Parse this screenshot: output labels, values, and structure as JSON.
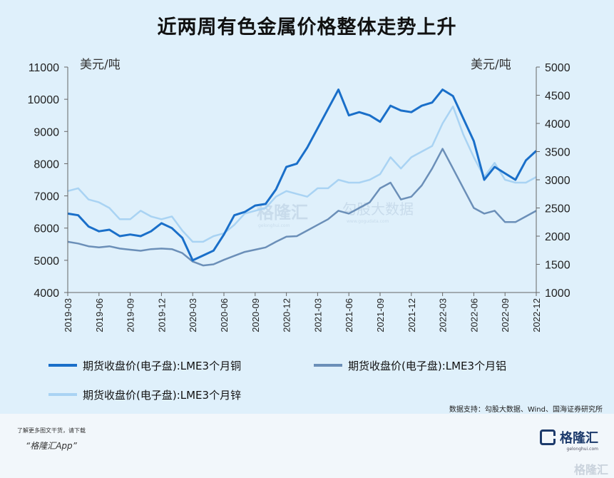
{
  "title": "近两周有色金属价格整体走势上升",
  "source": "数据支持：勾股大数据、Wind、国海证券研究所",
  "footer": {
    "note": "了解更多图文干货，请下载",
    "app": "“格隆汇App”",
    "brand": "格隆汇",
    "brand_sub": "gelonghui.com",
    "bottom_watermark": "格隆汇"
  },
  "watermark": {
    "left": "格隆汇",
    "left_sub": "gelonghui.com",
    "right": "勾股大数据",
    "right_sub": "www.gogudata.com"
  },
  "colors": {
    "copper": "#1a6fc9",
    "aluminum": "#6b8fb8",
    "zinc": "#a9d3f3"
  },
  "chart_data": {
    "type": "line",
    "title": "近两周有色金属价格整体走势上升",
    "left_axis": {
      "unit": "美元/吨",
      "ylim": [
        4000,
        11000
      ],
      "ticks": [
        4000,
        5000,
        6000,
        7000,
        8000,
        9000,
        10000,
        11000
      ]
    },
    "right_axis": {
      "unit": "美元/吨",
      "ylim": [
        1000,
        5000
      ],
      "ticks": [
        1000,
        1500,
        2000,
        2500,
        3000,
        3500,
        4000,
        4500,
        5000
      ]
    },
    "x_ticks": [
      "2019-03",
      "2019-06",
      "2019-09",
      "2019-12",
      "2020-03",
      "2020-06",
      "2020-09",
      "2020-12",
      "2021-03",
      "2021-06",
      "2021-09",
      "2021-12",
      "2022-03",
      "2022-06",
      "2022-09",
      "2022-12"
    ],
    "x_range": [
      "2019-03",
      "2022-12"
    ],
    "legend": [
      {
        "name": "期货收盘价(电子盘):LME3个月铜",
        "color": "#1a6fc9"
      },
      {
        "name": "期货收盘价(电子盘):LME3个月铝",
        "color": "#6b8fb8"
      },
      {
        "name": "期货收盘价(电子盘):LME3个月锌",
        "color": "#a9d3f3"
      }
    ],
    "series": [
      {
        "name": "期货收盘价(电子盘):LME3个月铜",
        "axis": "left",
        "x": [
          "2019-03",
          "2019-04",
          "2019-05",
          "2019-06",
          "2019-07",
          "2019-08",
          "2019-09",
          "2019-10",
          "2019-11",
          "2019-12",
          "2020-01",
          "2020-02",
          "2020-03",
          "2020-04",
          "2020-05",
          "2020-06",
          "2020-07",
          "2020-08",
          "2020-09",
          "2020-10",
          "2020-11",
          "2020-12",
          "2021-01",
          "2021-02",
          "2021-03",
          "2021-04",
          "2021-05",
          "2021-06",
          "2021-07",
          "2021-08",
          "2021-09",
          "2021-10",
          "2021-11",
          "2021-12",
          "2022-01",
          "2022-02",
          "2022-03",
          "2022-04",
          "2022-05",
          "2022-06",
          "2022-07",
          "2022-08",
          "2022-09",
          "2022-10",
          "2022-11",
          "2022-12"
        ],
        "values": [
          6450,
          6400,
          6050,
          5900,
          5950,
          5750,
          5800,
          5750,
          5900,
          6150,
          6000,
          5700,
          5000,
          5150,
          5300,
          5800,
          6400,
          6500,
          6700,
          6750,
          7200,
          7900,
          8000,
          8500,
          9100,
          9700,
          10300,
          9500,
          9600,
          9500,
          9300,
          9800,
          9650,
          9600,
          9800,
          9900,
          10300,
          10100,
          9400,
          8700,
          7500,
          7900,
          7700,
          7500,
          8100,
          8400
        ]
      },
      {
        "name": "期货收盘价(电子盘):LME3个月铝",
        "axis": "right",
        "x": [
          "2019-03",
          "2019-04",
          "2019-05",
          "2019-06",
          "2019-07",
          "2019-08",
          "2019-09",
          "2019-10",
          "2019-11",
          "2019-12",
          "2020-01",
          "2020-02",
          "2020-03",
          "2020-04",
          "2020-05",
          "2020-06",
          "2020-07",
          "2020-08",
          "2020-09",
          "2020-10",
          "2020-11",
          "2020-12",
          "2021-01",
          "2021-02",
          "2021-03",
          "2021-04",
          "2021-05",
          "2021-06",
          "2021-07",
          "2021-08",
          "2021-09",
          "2021-10",
          "2021-11",
          "2021-12",
          "2022-01",
          "2022-02",
          "2022-03",
          "2022-04",
          "2022-05",
          "2022-06",
          "2022-07",
          "2022-08",
          "2022-09",
          "2022-10",
          "2022-11",
          "2022-12"
        ],
        "values": [
          1900,
          1870,
          1820,
          1800,
          1820,
          1780,
          1760,
          1740,
          1770,
          1780,
          1770,
          1700,
          1550,
          1480,
          1500,
          1580,
          1650,
          1720,
          1760,
          1800,
          1900,
          1990,
          2000,
          2100,
          2200,
          2300,
          2450,
          2400,
          2500,
          2600,
          2850,
          2950,
          2650,
          2700,
          2900,
          3200,
          3550,
          3200,
          2850,
          2500,
          2400,
          2450,
          2250,
          2250,
          2350,
          2450
        ]
      },
      {
        "name": "期货收盘价(电子盘):LME3个月锌",
        "axis": "right",
        "x": [
          "2019-03",
          "2019-04",
          "2019-05",
          "2019-06",
          "2019-07",
          "2019-08",
          "2019-09",
          "2019-10",
          "2019-11",
          "2019-12",
          "2020-01",
          "2020-02",
          "2020-03",
          "2020-04",
          "2020-05",
          "2020-06",
          "2020-07",
          "2020-08",
          "2020-09",
          "2020-10",
          "2020-11",
          "2020-12",
          "2021-01",
          "2021-02",
          "2021-03",
          "2021-04",
          "2021-05",
          "2021-06",
          "2021-07",
          "2021-08",
          "2021-09",
          "2021-10",
          "2021-11",
          "2021-12",
          "2022-01",
          "2022-02",
          "2022-03",
          "2022-04",
          "2022-05",
          "2022-06",
          "2022-07",
          "2022-08",
          "2022-09",
          "2022-10",
          "2022-11",
          "2022-12"
        ],
        "values": [
          2800,
          2850,
          2650,
          2600,
          2500,
          2300,
          2300,
          2450,
          2350,
          2300,
          2350,
          2100,
          1900,
          1900,
          2000,
          2050,
          2200,
          2400,
          2450,
          2500,
          2700,
          2800,
          2750,
          2700,
          2850,
          2850,
          3000,
          2950,
          2950,
          3000,
          3100,
          3400,
          3200,
          3400,
          3500,
          3600,
          4000,
          4300,
          3800,
          3400,
          3050,
          3300,
          3000,
          2950,
          2950,
          3050
        ]
      }
    ]
  }
}
